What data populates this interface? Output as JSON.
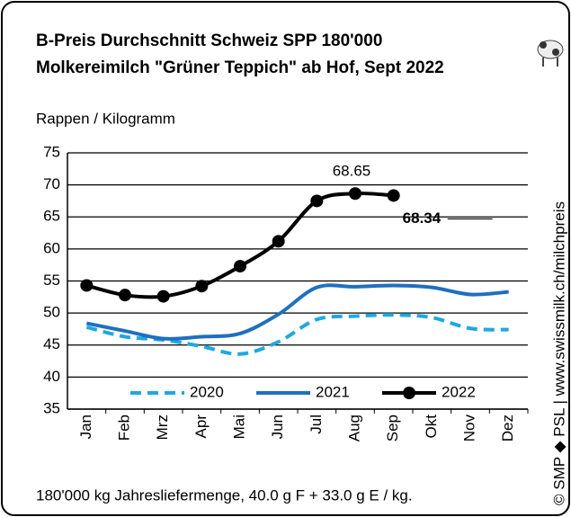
{
  "chart_data": {
    "type": "line",
    "title_line1": "B-Preis Durchschnitt Schweiz SPP 180'000",
    "title_line2": "Molkereimilch \"Grüner Teppich\" ab Hof, Sept 2022",
    "y_label": "Rappen / Kilogramm",
    "footnote": "180'000 kg Jahresliefermenge, 40.0 g F + 33.0 g E / kg.",
    "source": "© SMP ◆ PSL | www.swissmilk.ch/milchpreis",
    "categories": [
      "Jan",
      "Feb",
      "Mrz",
      "Apr",
      "Mai",
      "Jun",
      "Jul",
      "Aug",
      "Sep",
      "Okt",
      "Nov",
      "Dez"
    ],
    "series": [
      {
        "name": "2020",
        "color": "#1fa8e0",
        "dashed": true,
        "marker": false,
        "values": [
          47.8,
          46.3,
          45.8,
          44.8,
          43.6,
          45.5,
          49.0,
          49.5,
          49.7,
          49.3,
          47.6,
          47.4
        ]
      },
      {
        "name": "2021",
        "color": "#1f6fbf",
        "dashed": false,
        "marker": false,
        "values": [
          48.4,
          47.2,
          46.0,
          46.3,
          46.8,
          49.8,
          54.0,
          54.1,
          54.3,
          54.0,
          52.9,
          53.3
        ]
      },
      {
        "name": "2022",
        "color": "#000000",
        "dashed": false,
        "marker": true,
        "values": [
          54.3,
          52.8,
          52.6,
          54.2,
          57.3,
          61.2,
          67.5,
          68.65,
          68.34,
          null,
          null,
          null
        ]
      }
    ],
    "ylim": [
      35,
      75
    ],
    "yticks": [
      35,
      40,
      45,
      50,
      55,
      60,
      65,
      70,
      75
    ],
    "grid": true,
    "legend": "lower center"
  }
}
